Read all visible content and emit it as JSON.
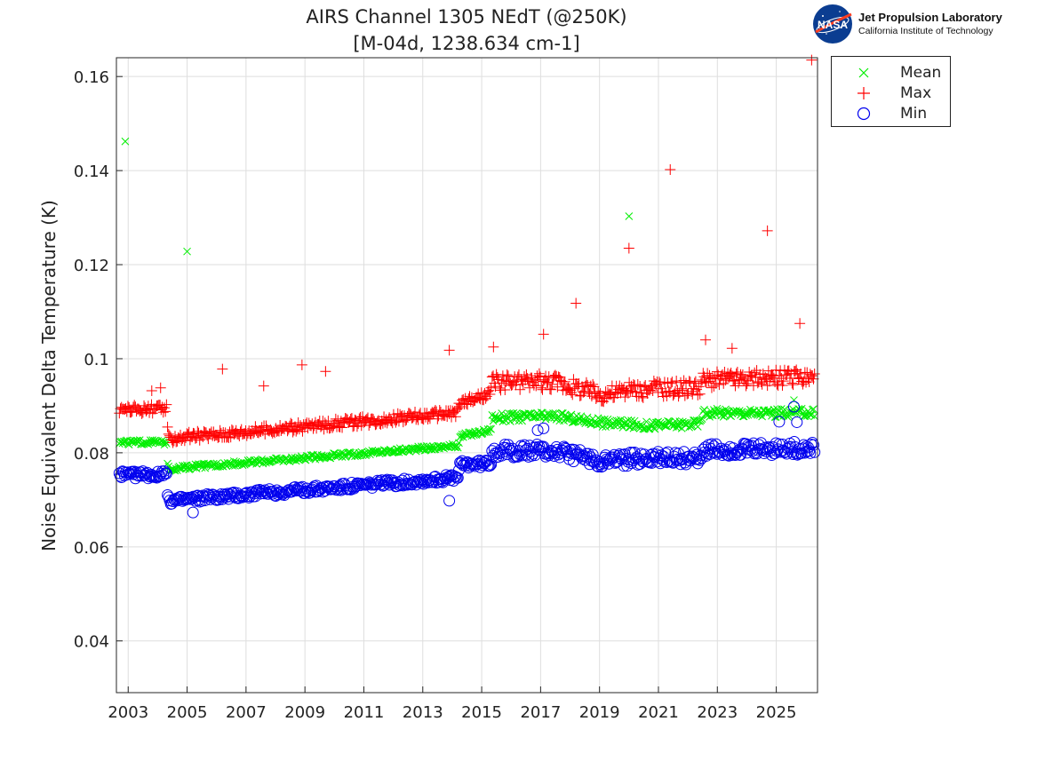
{
  "chart_data": {
    "type": "scatter",
    "title": "AIRS Channel 1305 NEdT (@250K)",
    "subtitle": "[M-04d, 1238.634 cm-1]",
    "xlabel": "",
    "ylabel": "Noise Equivalent Delta Temperature (K)",
    "xlim": [
      2002.6,
      2026.4
    ],
    "ylim": [
      0.029,
      0.164
    ],
    "xticks": [
      2003,
      2005,
      2007,
      2009,
      2011,
      2013,
      2015,
      2017,
      2019,
      2021,
      2023,
      2025
    ],
    "xtick_labels": [
      "2003",
      "2005",
      "2007",
      "2009",
      "2011",
      "2013",
      "2015",
      "2017",
      "2019",
      "2021",
      "2023",
      "2025"
    ],
    "yticks": [
      0.04,
      0.06,
      0.08,
      0.1,
      0.12,
      0.14,
      0.16
    ],
    "ytick_labels": [
      "0.04",
      "0.06",
      "0.08",
      "0.1",
      "0.12",
      "0.14",
      "0.16"
    ],
    "grid": true,
    "legend_position": "outside-top-right",
    "series": [
      {
        "name": "Mean",
        "marker": "x",
        "color": "#00ee00",
        "trend_x": [
          2002.7,
          2004.3,
          2004.35,
          2014.2,
          2014.25,
          2015.3,
          2015.35,
          2017.5,
          2019.0,
          2020.5,
          2022.4,
          2022.5,
          2026.3
        ],
        "trend_y": [
          0.0822,
          0.0822,
          0.0766,
          0.0815,
          0.0835,
          0.0848,
          0.0875,
          0.0878,
          0.0865,
          0.0858,
          0.0862,
          0.0885,
          0.0885
        ],
        "outliers_x": [
          2002.9,
          2005.0,
          2020.0,
          2025.6
        ],
        "outliers_y": [
          0.1462,
          0.1228,
          0.1303,
          0.0912
        ]
      },
      {
        "name": "Max",
        "marker": "+",
        "color": "#ff0000",
        "trend_x": [
          2002.7,
          2004.3,
          2004.35,
          2014.2,
          2014.25,
          2015.3,
          2015.35,
          2017.5,
          2019.0,
          2020.5,
          2022.4,
          2022.5,
          2026.3
        ],
        "trend_y": [
          0.0893,
          0.0893,
          0.083,
          0.0885,
          0.0905,
          0.0925,
          0.095,
          0.0952,
          0.0925,
          0.0935,
          0.094,
          0.0955,
          0.096
        ],
        "outliers_x": [
          2003.8,
          2004.1,
          2006.2,
          2007.6,
          2008.9,
          2009.7,
          2013.9,
          2015.4,
          2017.1,
          2018.2,
          2020.0,
          2021.4,
          2022.6,
          2023.5,
          2024.7,
          2025.8,
          2026.2
        ],
        "outliers_y": [
          0.0932,
          0.0938,
          0.0978,
          0.0942,
          0.0987,
          0.0973,
          0.1018,
          0.1025,
          0.1052,
          0.1118,
          0.1235,
          0.1402,
          0.104,
          0.1022,
          0.1272,
          0.1075,
          0.1635
        ]
      },
      {
        "name": "Min",
        "marker": "o",
        "color": "#0000ee",
        "trend_x": [
          2002.7,
          2004.3,
          2004.35,
          2014.2,
          2014.25,
          2015.3,
          2015.35,
          2017.5,
          2019.0,
          2020.5,
          2022.4,
          2022.5,
          2026.3
        ],
        "trend_y": [
          0.0753,
          0.0753,
          0.0698,
          0.0747,
          0.0775,
          0.0778,
          0.0805,
          0.0803,
          0.0783,
          0.0788,
          0.079,
          0.0805,
          0.081
        ],
        "outliers_x": [
          2005.2,
          2013.9,
          2016.9,
          2017.1,
          2025.1,
          2025.6,
          2025.7
        ],
        "outliers_y": [
          0.0673,
          0.0698,
          0.0848,
          0.0852,
          0.0866,
          0.0898,
          0.0865
        ]
      }
    ]
  },
  "logo": {
    "badge": "NASA",
    "lab": "Jet Propulsion Laboratory",
    "institute": "California Institute of Technology"
  },
  "colors": {
    "axis": "#262626",
    "grid": "#dedede",
    "mean": "#00ee00",
    "max": "#ff0000",
    "min": "#0000ee",
    "nasa_blue": "#0b3d91",
    "nasa_red": "#fc3d21"
  }
}
